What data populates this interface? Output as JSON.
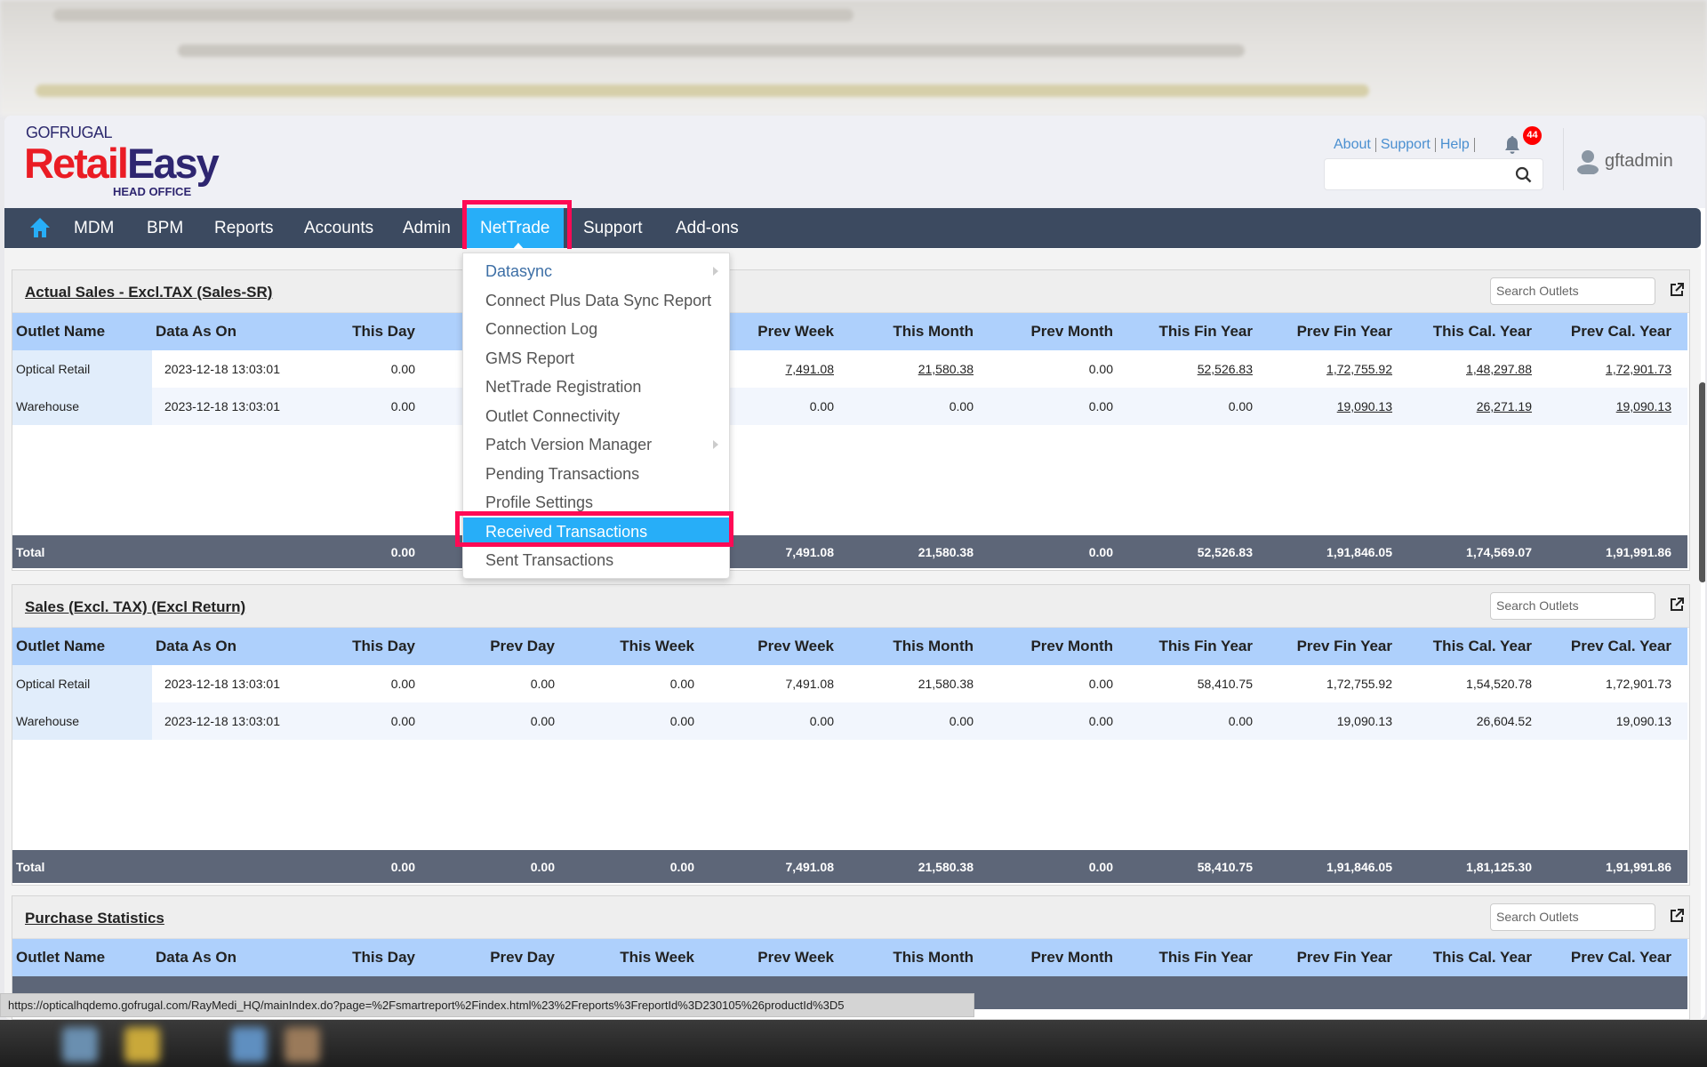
{
  "header": {
    "logo_top": "GOFRUGAL",
    "logo_retail": "Retail",
    "logo_easy": "Easy",
    "logo_sub": "HEAD OFFICE",
    "links": [
      "About",
      "Support",
      "Help"
    ],
    "notification_count": "44",
    "search_value": "",
    "username": "gftadmin"
  },
  "nav": {
    "items": [
      "MDM",
      "BPM",
      "Reports",
      "Accounts",
      "Admin",
      "NetTrade",
      "Support",
      "Add-ons"
    ],
    "active": "NetTrade"
  },
  "menu": {
    "items": [
      {
        "label": "Datasync",
        "submenu": true
      },
      {
        "label": "Connect Plus Data Sync Report",
        "submenu": false
      },
      {
        "label": "Connection Log",
        "submenu": false
      },
      {
        "label": "GMS Report",
        "submenu": false
      },
      {
        "label": "NetTrade Registration",
        "submenu": false
      },
      {
        "label": "Outlet Connectivity",
        "submenu": false
      },
      {
        "label": "Patch Version Manager",
        "submenu": true
      },
      {
        "label": "Pending Transactions",
        "submenu": false
      },
      {
        "label": "Profile Settings",
        "submenu": false
      },
      {
        "label": "Received Transactions",
        "submenu": false
      },
      {
        "label": "Sent Transactions",
        "submenu": false
      }
    ],
    "selected": "Received Transactions"
  },
  "columns": [
    "Outlet Name",
    "Data As On",
    "This Day",
    "Prev Day",
    "This Week",
    "Prev Week",
    "This Month",
    "Prev Month",
    "This Fin Year",
    "Prev Fin Year",
    "This Cal. Year",
    "Prev Cal. Year"
  ],
  "sections": [
    {
      "title": "Actual Sales - Excl.TAX (Sales-SR)",
      "search_placeholder": "Search Outlets",
      "rows": [
        {
          "cells": [
            "Optical Retail",
            "2023-12-18 13:03:01",
            "0.00",
            "",
            "",
            "7,491.08",
            "21,580.38",
            "0.00",
            "52,526.83",
            "1,72,755.92",
            "1,48,297.88",
            "1,72,901.73"
          ],
          "links": [
            false,
            false,
            false,
            false,
            false,
            true,
            true,
            false,
            true,
            true,
            true,
            true
          ]
        },
        {
          "cells": [
            "Warehouse",
            "2023-12-18 13:03:01",
            "0.00",
            "",
            "",
            "0.00",
            "0.00",
            "0.00",
            "0.00",
            "19,090.13",
            "26,271.19",
            "19,090.13"
          ],
          "links": [
            false,
            false,
            false,
            false,
            false,
            false,
            false,
            false,
            false,
            true,
            true,
            true
          ]
        }
      ],
      "total": [
        "Total",
        "",
        "0.00",
        "",
        "",
        "7,491.08",
        "21,580.38",
        "0.00",
        "52,526.83",
        "1,91,846.05",
        "1,74,569.07",
        "1,91,991.86"
      ]
    },
    {
      "title": "Sales (Excl. TAX) (Excl Return)",
      "search_placeholder": "Search Outlets",
      "rows": [
        {
          "cells": [
            "Optical Retail",
            "2023-12-18 13:03:01",
            "0.00",
            "0.00",
            "0.00",
            "7,491.08",
            "21,580.38",
            "0.00",
            "58,410.75",
            "1,72,755.92",
            "1,54,520.78",
            "1,72,901.73"
          ],
          "links": [
            false,
            false,
            false,
            false,
            false,
            false,
            false,
            false,
            false,
            false,
            false,
            false
          ]
        },
        {
          "cells": [
            "Warehouse",
            "2023-12-18 13:03:01",
            "0.00",
            "0.00",
            "0.00",
            "0.00",
            "0.00",
            "0.00",
            "0.00",
            "19,090.13",
            "26,604.52",
            "19,090.13"
          ],
          "links": [
            false,
            false,
            false,
            false,
            false,
            false,
            false,
            false,
            false,
            false,
            false,
            false
          ]
        }
      ],
      "total": [
        "Total",
        "",
        "0.00",
        "0.00",
        "0.00",
        "7,491.08",
        "21,580.38",
        "0.00",
        "58,410.75",
        "1,91,846.05",
        "1,81,125.30",
        "1,91,991.86"
      ]
    },
    {
      "title": "Purchase Statistics",
      "search_placeholder": "Search Outlets",
      "rows": [],
      "total": [
        "",
        "",
        "",
        "",
        "",
        "",
        "",
        "",
        "",
        "",
        "",
        ""
      ]
    }
  ],
  "status_url": "https://opticalhqdemo.gofrugal.com/RayMedi_HQ/mainIndex.do?page=%2Fsmartreport%2Findex.html%23%2Freports%3FreportId%3D230105%26productId%3D5",
  "colors": {
    "nav_bg": "#3c4a60",
    "active_tab": "#27aef8",
    "highlight_box": "#ff0a55",
    "table_head": "#aed0fc",
    "total_row": "#5d6678",
    "badge": "#ff0000"
  }
}
